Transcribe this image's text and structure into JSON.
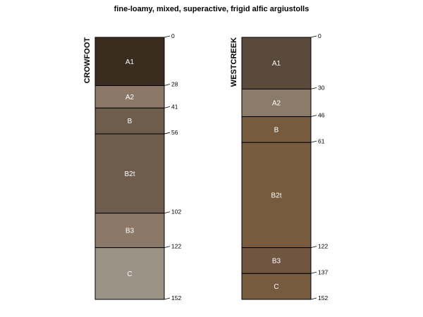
{
  "chart_data": {
    "type": "soil-profile",
    "title": "fine-loamy, mixed, superactive, frigid alfic argiustolls",
    "depth_range": [
      0,
      152
    ],
    "profiles": [
      {
        "name": "CROWFOOT",
        "horizons": [
          {
            "name": "A1",
            "top": 0,
            "bottom": 28,
            "color": "#3b2c20"
          },
          {
            "name": "A2",
            "top": 28,
            "bottom": 41,
            "color": "#8b7866"
          },
          {
            "name": "B",
            "top": 41,
            "bottom": 56,
            "color": "#6e5d4c"
          },
          {
            "name": "B2t",
            "top": 56,
            "bottom": 102,
            "color": "#6e5d4c"
          },
          {
            "name": "B3",
            "top": 102,
            "bottom": 122,
            "color": "#8b7866"
          },
          {
            "name": "C",
            "top": 122,
            "bottom": 152,
            "color": "#9a9385"
          }
        ]
      },
      {
        "name": "WESTCREEK",
        "horizons": [
          {
            "name": "A1",
            "top": 0,
            "bottom": 30,
            "color": "#5a4a3b"
          },
          {
            "name": "A2",
            "top": 30,
            "bottom": 46,
            "color": "#8b7b69"
          },
          {
            "name": "B",
            "top": 46,
            "bottom": 61,
            "color": "#775b3e"
          },
          {
            "name": "B2t",
            "top": 61,
            "bottom": 122,
            "color": "#775b3e"
          },
          {
            "name": "B3",
            "top": 122,
            "bottom": 137,
            "color": "#6e5640"
          },
          {
            "name": "C",
            "top": 137,
            "bottom": 152,
            "color": "#775b3e"
          }
        ]
      }
    ]
  }
}
